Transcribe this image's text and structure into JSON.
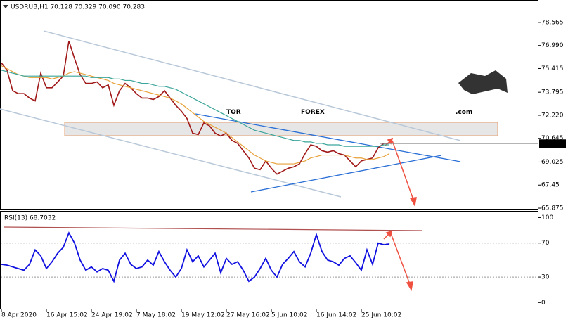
{
  "watermark": {
    "parts": [
      "TOR",
      "FOREX",
      ".com"
    ]
  },
  "chart_data": [
    {
      "type": "line",
      "title": "USDRUB,H1 70.128 70.329 70.090 70.283",
      "categories": [
        "8 Apr 2020",
        null,
        null,
        null,
        null,
        null,
        null,
        null,
        "16 Apr 15:02",
        null,
        null,
        null,
        null,
        null,
        null,
        null,
        "24 Apr 19:02",
        null,
        null,
        null,
        null,
        null,
        null,
        null,
        "7 May 18:02",
        null,
        null,
        null,
        null,
        null,
        null,
        null,
        "19 May 12:02",
        null,
        null,
        null,
        null,
        null,
        null,
        null,
        "27 May 16:02",
        null,
        null,
        null,
        null,
        null,
        null,
        null,
        "5 Jun 10:02",
        null,
        null,
        null,
        null,
        null,
        null,
        null,
        "16 Jun 14:02",
        null,
        null,
        null,
        null,
        null,
        null,
        null,
        "25 Jun 10:02",
        null,
        null,
        null,
        null,
        null
      ],
      "series": [
        {
          "color": "#a01818",
          "values": [
            75.8,
            75.3,
            73.9,
            73.7,
            73.7,
            73.4,
            73.2,
            75.1,
            74.1,
            74.1,
            74.5,
            74.9,
            77.3,
            76.1,
            75.0,
            74.4,
            74.4,
            74.5,
            74.1,
            74.3,
            72.9,
            73.9,
            74.4,
            74.1,
            73.7,
            73.4,
            73.4,
            73.3,
            73.5,
            73.9,
            73.4,
            72.9,
            72.5,
            72.0,
            71.0,
            70.9,
            71.7,
            71.5,
            71.0,
            70.8,
            71.0,
            70.5,
            70.3,
            69.8,
            69.3,
            68.6,
            68.5,
            69.1,
            68.6,
            68.2,
            68.4,
            68.6,
            68.7,
            68.9,
            69.6,
            70.2,
            70.1,
            69.8,
            69.7,
            69.8,
            69.6,
            69.5,
            69.1,
            68.7,
            69.1,
            69.2,
            69.3,
            70.0,
            70.3,
            70.3
          ]
        },
        {
          "color": "#e8a23a",
          "values": [
            75.6,
            75.4,
            75.2,
            75.0,
            74.9,
            74.8,
            74.8,
            74.8,
            74.8,
            74.7,
            74.8,
            74.9,
            75.1,
            75.2,
            75.1,
            75.0,
            74.9,
            74.8,
            74.7,
            74.6,
            74.4,
            74.3,
            74.2,
            74.1,
            74.0,
            73.9,
            73.8,
            73.7,
            73.6,
            73.5,
            73.4,
            73.2,
            73.0,
            72.7,
            72.4,
            72.1,
            71.8,
            71.6,
            71.4,
            71.2,
            71.0,
            70.7,
            70.4,
            70.1,
            69.8,
            69.5,
            69.3,
            69.1,
            69.0,
            68.9,
            68.9,
            68.9,
            68.9,
            69.0,
            69.1,
            69.3,
            69.4,
            69.5,
            69.5,
            69.5,
            69.5,
            69.5,
            69.4,
            69.3,
            69.3,
            69.2,
            69.2,
            69.3,
            69.4,
            69.6
          ]
        },
        {
          "color": "#3aa59a",
          "values": [
            75.3,
            75.2,
            75.1,
            75.0,
            74.9,
            74.9,
            74.9,
            74.9,
            74.9,
            74.9,
            74.9,
            74.9,
            74.9,
            74.9,
            74.9,
            74.9,
            74.8,
            74.8,
            74.8,
            74.8,
            74.7,
            74.7,
            74.6,
            74.6,
            74.5,
            74.4,
            74.4,
            74.3,
            74.2,
            74.2,
            74.1,
            74.0,
            73.8,
            73.6,
            73.4,
            73.2,
            73.0,
            72.8,
            72.6,
            72.4,
            72.2,
            72.0,
            71.8,
            71.6,
            71.4,
            71.2,
            71.1,
            71.0,
            70.9,
            70.8,
            70.7,
            70.6,
            70.5,
            70.5,
            70.4,
            70.4,
            70.3,
            70.3,
            70.2,
            70.2,
            70.2,
            70.1,
            70.1,
            70.1,
            70.1,
            70.1,
            70.1,
            70.1,
            70.2,
            70.2
          ]
        }
      ],
      "current_price": 70.283,
      "ylim": [
        65.78,
        80.05
      ],
      "yticks": [
        65.875,
        67.45,
        69.025,
        70.645,
        {
          "value": 72.22,
          "label": "72.220"
        },
        73.795,
        75.415,
        {
          "value": 76.99,
          "label": "76.990"
        },
        78.565
      ]
    },
    {
      "type": "line",
      "title": "RSI(13) 68.7032",
      "series": [
        {
          "color": "#1010e0",
          "values": [
            45,
            44,
            42,
            40,
            38,
            45,
            62,
            55,
            40,
            48,
            58,
            65,
            82,
            70,
            50,
            38,
            42,
            36,
            40,
            38,
            25,
            50,
            58,
            45,
            40,
            42,
            50,
            44,
            60,
            48,
            38,
            30,
            40,
            62,
            48,
            55,
            42,
            50,
            58,
            35,
            52,
            45,
            48,
            38,
            25,
            30,
            40,
            52,
            38,
            30,
            45,
            52,
            60,
            48,
            42,
            58,
            80,
            60,
            50,
            48,
            44,
            52,
            55,
            47,
            38,
            62,
            45,
            70,
            68,
            69
          ]
        }
      ],
      "ylim": [
        -8,
        107
      ],
      "yticks": [
        0,
        30,
        70,
        100
      ]
    }
  ]
}
